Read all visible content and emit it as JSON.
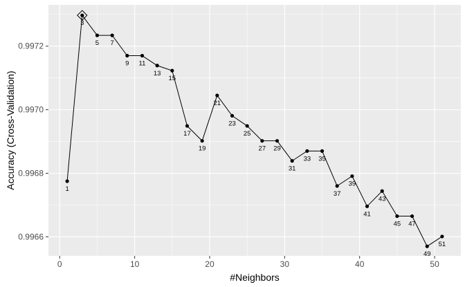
{
  "chart_data": {
    "type": "line",
    "title": "",
    "xlabel": "#Neighbors",
    "ylabel": "Accuracy (Cross-Validation)",
    "xlim": [
      -1.5,
      53.5
    ],
    "ylim": [
      0.99654,
      0.99733
    ],
    "x_ticks": [
      0,
      10,
      20,
      30,
      40,
      50
    ],
    "x_tick_labels": [
      "0",
      "10",
      "20",
      "30",
      "40",
      "50"
    ],
    "y_ticks": [
      0.9966,
      0.9968,
      0.997,
      0.9972
    ],
    "y_tick_labels": [
      "0.9966",
      "0.9968",
      "0.9970",
      "0.9972"
    ],
    "grid": true,
    "background": "#ebebeb",
    "grid_color": "#ffffff",
    "line_color": "#000000",
    "point_color": "#000000",
    "best_marker": "diamond",
    "best_x": 3,
    "series": [
      {
        "x": [
          1,
          3,
          5,
          7,
          9,
          11,
          13,
          15,
          17,
          19,
          21,
          23,
          25,
          27,
          29,
          31,
          33,
          35,
          37,
          39,
          41,
          43,
          45,
          47,
          49,
          51
        ],
        "labels": [
          "1",
          "3",
          "5",
          "7",
          "9",
          "11",
          "13",
          "15",
          "17",
          "19",
          "21",
          "23",
          "25",
          "27",
          "29",
          "31",
          "33",
          "35",
          "37",
          "39",
          "41",
          "43",
          "45",
          "47",
          "49",
          "51"
        ],
        "values": [
          0.996775,
          0.997297,
          0.997234,
          0.997234,
          0.99717,
          0.99717,
          0.997139,
          0.997123,
          0.996949,
          0.996902,
          0.997045,
          0.996981,
          0.996949,
          0.996902,
          0.996902,
          0.996839,
          0.99687,
          0.99687,
          0.99676,
          0.996791,
          0.996696,
          0.996744,
          0.996665,
          0.996665,
          0.99657,
          0.996601
        ]
      }
    ]
  }
}
